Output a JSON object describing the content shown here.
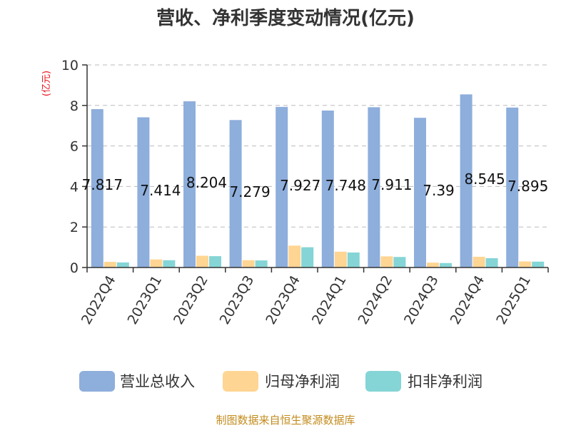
{
  "title": "营收、净利季度变动情况(亿元)",
  "unit_label": "(亿元)",
  "source": "制图数据来自恒生聚源数据库",
  "colors": {
    "revenue": "#8eaedc",
    "net_profit": "#ffd593",
    "net_profit_deducted": "#85d5d6",
    "grid": "#bbbbbb",
    "axis": "#333333"
  },
  "chart_data": {
    "type": "bar",
    "title": "营收、净利季度变动情况(亿元)",
    "ylabel": "(亿元)",
    "ylim": [
      0,
      10
    ],
    "yticks": [
      0,
      2,
      4,
      6,
      8,
      10
    ],
    "grid": true,
    "legend_position": "bottom",
    "categories": [
      "2022Q4",
      "2023Q1",
      "2023Q2",
      "2023Q3",
      "2023Q4",
      "2024Q1",
      "2024Q2",
      "2024Q3",
      "2024Q4",
      "2025Q1"
    ],
    "series": [
      {
        "name": "营业总收入",
        "values": [
          7.817,
          7.414,
          8.204,
          7.279,
          7.927,
          7.748,
          7.911,
          7.39,
          8.545,
          7.895
        ],
        "show_labels": true
      },
      {
        "name": "归母净利润",
        "values": [
          0.28,
          0.4,
          0.58,
          0.36,
          1.08,
          0.78,
          0.55,
          0.24,
          0.53,
          0.3
        ]
      },
      {
        "name": "扣非净利润",
        "values": [
          0.25,
          0.36,
          0.56,
          0.35,
          1.0,
          0.74,
          0.52,
          0.22,
          0.46,
          0.29
        ]
      }
    ]
  }
}
